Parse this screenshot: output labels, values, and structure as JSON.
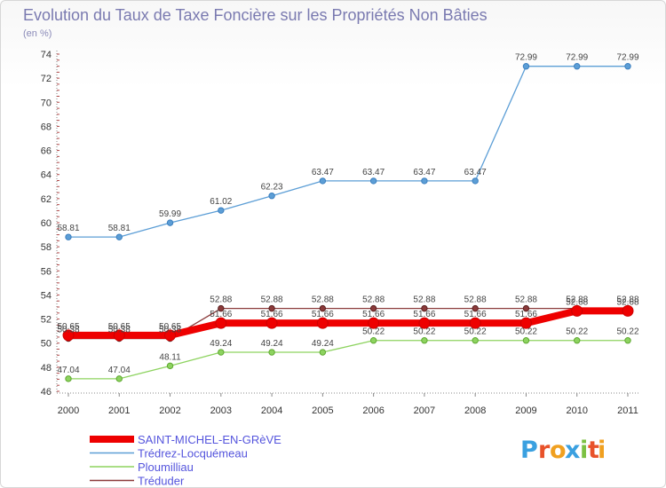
{
  "chart_data": {
    "type": "line",
    "title": "Evolution du Taux de Taxe Foncière sur les Propriétés Non Bâties",
    "subtitle": "(en %)",
    "xlabel": "",
    "ylabel": "",
    "categories": [
      "2000",
      "2001",
      "2002",
      "2003",
      "2004",
      "2005",
      "2006",
      "2007",
      "2008",
      "2009",
      "2010",
      "2011"
    ],
    "ylim": [
      46,
      74
    ],
    "yticks": [
      "46",
      "48",
      "50",
      "52",
      "54",
      "56",
      "58",
      "60",
      "62",
      "64",
      "66",
      "68",
      "70",
      "72",
      "74"
    ],
    "series": [
      {
        "name": "Trédrez-Locquémeau",
        "color": "#5c9ed6",
        "values": [
          58.81,
          58.81,
          59.99,
          61.02,
          62.23,
          63.47,
          63.47,
          63.47,
          63.47,
          72.99,
          72.99,
          72.99
        ],
        "labels": [
          "58.81",
          "58.81",
          "59.99",
          "61.02",
          "62.23",
          "63.47",
          "63.47",
          "63.47",
          "63.47",
          "72.99",
          "72.99",
          "72.99"
        ]
      },
      {
        "name": "Ploumilliau",
        "color": "#8dd35f",
        "values": [
          47.04,
          47.04,
          48.11,
          49.24,
          49.24,
          49.24,
          50.22,
          50.22,
          50.22,
          50.22,
          50.22,
          50.22
        ],
        "labels": [
          "47.04",
          "47.04",
          "48.11",
          "49.24",
          "49.24",
          "49.24",
          "50.22",
          "50.22",
          "50.22",
          "50.22",
          "50.22",
          "50.22"
        ]
      },
      {
        "name": "Tréduder",
        "color": "#8b3a3a",
        "values": [
          50.38,
          50.38,
          50.38,
          52.88,
          52.88,
          52.88,
          52.88,
          52.88,
          52.88,
          52.88,
          52.88,
          52.88
        ],
        "labels": [
          "50.38",
          "50.38",
          "50.38",
          "52.88",
          "52.88",
          "52.88",
          "52.88",
          "52.88",
          "52.88",
          "52.88",
          "52.88",
          "52.88"
        ]
      },
      {
        "name": "SAINT-MICHEL-EN-GRèVE",
        "color": "#ee0000",
        "values": [
          50.65,
          50.65,
          50.65,
          51.66,
          51.66,
          51.66,
          51.66,
          51.66,
          51.66,
          51.66,
          52.68,
          52.68
        ],
        "labels": [
          "50.65",
          "50.65",
          "50.65",
          "51.66",
          "51.66",
          "51.66",
          "51.66",
          "51.66",
          "51.66",
          "51.66",
          "52.68",
          "52.68"
        ]
      }
    ],
    "legend_order": [
      "SAINT-MICHEL-EN-GRèVE",
      "Trédrez-Locquémeau",
      "Ploumilliau",
      "Tréduder"
    ],
    "legend_position": "bottom-left",
    "grid": false
  },
  "brand": {
    "logo_letters": [
      "P",
      "r",
      "o",
      "x",
      "i",
      "t",
      "i"
    ],
    "logo_colors": [
      "#3aa0e0",
      "#e8522a",
      "#f0a020",
      "#3aa0e0",
      "#7cc142",
      "#e8522a",
      "#f0a020"
    ]
  }
}
